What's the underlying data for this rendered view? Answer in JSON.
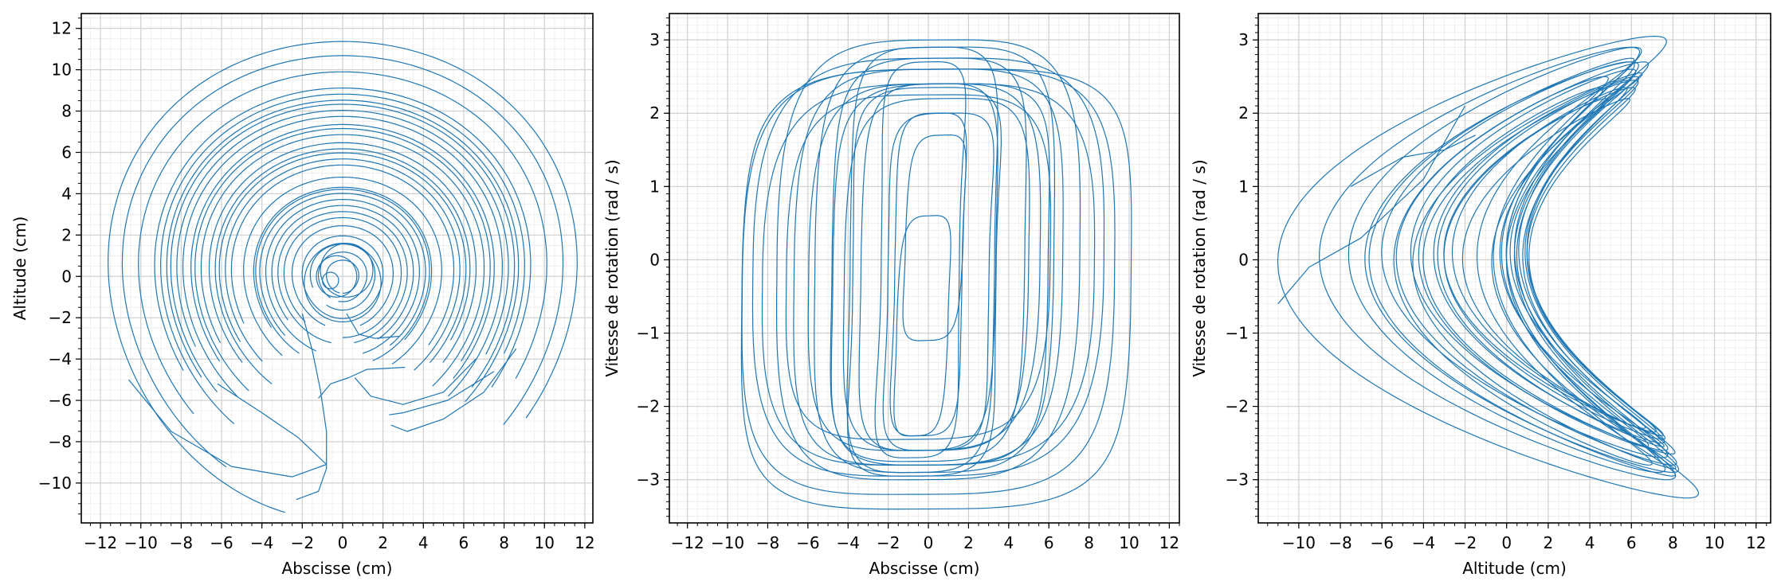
{
  "colors": {
    "line": "#1f77b4",
    "major_grid": "#d0d0d0",
    "minor_grid": "#ececec",
    "axes": "#000000"
  },
  "chart_data": [
    {
      "type": "line",
      "title": "",
      "xlabel": "Abscisse (cm)",
      "ylabel": "Altitude (cm)",
      "xlim": [
        -12.95,
        12.4
      ],
      "ylim": [
        -11.93,
        12.72
      ],
      "xticks": [
        -12,
        -10,
        -8,
        -6,
        -4,
        -2,
        0,
        2,
        4,
        6,
        8,
        10,
        12
      ],
      "yticks": [
        -10,
        -8,
        -6,
        -4,
        -2,
        0,
        2,
        4,
        6,
        8,
        10,
        12
      ],
      "xminor": 0.5,
      "yminor": 0.5,
      "grid": true,
      "arcs_r_startdeg_enddeg": [
        [
          11.6,
          256,
          -37
        ],
        [
          10.9,
          238,
          -42
        ],
        [
          10.1,
          222,
          -30
        ],
        [
          9.3,
          210,
          -36
        ],
        [
          9.0,
          233,
          -25
        ],
        [
          8.7,
          215,
          -45
        ],
        [
          8.5,
          222,
          -40
        ],
        [
          8.2,
          205,
          -28
        ],
        [
          7.9,
          228,
          -48
        ],
        [
          7.5,
          214,
          -42
        ],
        [
          7.3,
          230,
          -35
        ],
        [
          7.0,
          208,
          -50
        ],
        [
          6.6,
          220,
          -40
        ],
        [
          6.3,
          236,
          -30
        ],
        [
          6.1,
          212,
          -44
        ],
        [
          5.8,
          226,
          -52
        ],
        [
          5.5,
          205,
          -38
        ],
        [
          4.9,
          232,
          -60
        ],
        [
          4.4,
          215,
          -45
        ],
        [
          4.3,
          240,
          -70
        ],
        [
          4.1,
          225,
          -55
        ],
        [
          3.8,
          250,
          -75
        ],
        [
          3.5,
          218,
          -60
        ],
        [
          3.2,
          260,
          -80
        ],
        [
          2.9,
          230,
          -90
        ],
        [
          2.5,
          250,
          -70
        ],
        [
          2.0,
          270,
          -100
        ],
        [
          1.6,
          200,
          -120
        ],
        [
          1.2,
          240,
          -100
        ],
        [
          0.8,
          260,
          -90
        ]
      ],
      "paths": [
        [
          [
            -2.3,
            -10.8
          ],
          [
            -1.2,
            -10.4
          ],
          [
            -0.8,
            -9.3
          ],
          [
            -0.8,
            -7.5
          ],
          [
            -1.1,
            -5.5
          ],
          [
            -1.5,
            -3.6
          ],
          [
            -2.0,
            -1.8
          ]
        ],
        [
          [
            -10.6,
            -5.0
          ],
          [
            -8.5,
            -7.5
          ],
          [
            -5.5,
            -9.2
          ],
          [
            -2.5,
            -9.7
          ],
          [
            -0.8,
            -9.1
          ],
          [
            -2.2,
            -7.8
          ],
          [
            -4.0,
            -6.6
          ],
          [
            -6.2,
            -5.2
          ]
        ],
        [
          [
            2.4,
            -7.2
          ],
          [
            3.2,
            -7.5
          ],
          [
            5.0,
            -6.9
          ],
          [
            7.0,
            -5.6
          ],
          [
            8.6,
            -3.5
          ]
        ],
        [
          [
            2.3,
            -6.7
          ],
          [
            3.0,
            -6.6
          ],
          [
            5.2,
            -6.0
          ],
          [
            7.5,
            -4.6
          ]
        ],
        [
          [
            0.6,
            -4.9
          ],
          [
            1.4,
            -5.8
          ],
          [
            3.0,
            -6.2
          ],
          [
            5.0,
            -5.6
          ],
          [
            6.6,
            -4.0
          ]
        ],
        [
          [
            -1.2,
            -5.9
          ],
          [
            -0.6,
            -5.2
          ],
          [
            0.3,
            -4.9
          ],
          [
            1.2,
            -4.5
          ],
          [
            3.1,
            -4.4
          ]
        ],
        [
          [
            0.2,
            -1.8
          ],
          [
            0.8,
            -2.8
          ],
          [
            1.6,
            -3.0
          ],
          [
            2.8,
            -2.9
          ]
        ]
      ],
      "small_loops_cx_cy_r": [
        [
          -0.6,
          -0.2,
          0.4
        ],
        [
          -0.3,
          0.0,
          1.0
        ],
        [
          0.2,
          0.3,
          1.3
        ],
        [
          0.0,
          -0.3,
          1.9
        ]
      ]
    },
    {
      "type": "line",
      "title": "",
      "xlabel": "Abscisse (cm)",
      "ylabel": "Vitesse de rotation (rad / s)",
      "xlim": [
        -12.9,
        12.5
      ],
      "ylim": [
        -3.59,
        3.36
      ],
      "xticks": [
        -12,
        -10,
        -8,
        -6,
        -4,
        -2,
        0,
        2,
        4,
        6,
        8,
        10,
        12
      ],
      "yticks": [
        -3,
        -2,
        -1,
        0,
        1,
        2,
        3
      ],
      "xminor": 0.5,
      "yminor": 0.1,
      "grid": true,
      "loops_cx_a_cy_b_waist": [
        [
          0,
          9.2,
          -0.1,
          2.85,
          0.05
        ],
        [
          0,
          8.2,
          0.0,
          3.0,
          0.08
        ],
        [
          0,
          7.6,
          -0.1,
          2.7,
          0.12
        ],
        [
          0.3,
          7.0,
          0.0,
          2.9,
          0.15
        ],
        [
          -0.2,
          6.4,
          -0.1,
          2.5,
          0.1
        ],
        [
          0,
          6.0,
          0.0,
          2.75,
          0.2
        ],
        [
          0.4,
          5.4,
          -0.2,
          2.4,
          0.15
        ],
        [
          -0.3,
          4.8,
          0.0,
          2.9,
          0.25
        ],
        [
          0,
          4.2,
          -0.1,
          2.5,
          0.2
        ],
        [
          0.5,
          3.6,
          -0.3,
          2.3,
          0.3
        ],
        [
          -0.4,
          3.0,
          0.0,
          2.7,
          0.35
        ],
        [
          0,
          2.4,
          -0.2,
          2.2,
          0.3
        ],
        [
          0.3,
          1.8,
          0.3,
          1.4,
          0.2
        ],
        [
          -0.3,
          1.6,
          -0.9,
          1.5,
          0.2
        ],
        [
          0,
          10.3,
          -0.3,
          2.9,
          0.1
        ],
        [
          0.4,
          11.4,
          -0.4,
          3.0,
          0.15
        ],
        [
          0,
          8.7,
          -0.2,
          2.6,
          0.05
        ],
        [
          -0.5,
          7.3,
          -0.1,
          2.35,
          0.1
        ],
        [
          0.6,
          6.7,
          -0.2,
          2.6,
          0.2
        ],
        [
          -0.2,
          5.1,
          -0.3,
          2.65,
          0.3
        ]
      ]
    },
    {
      "type": "line",
      "title": "",
      "xlabel": "Altitude (cm)",
      "ylabel": "Vitesse de rotation (rad / s)",
      "xlim": [
        -11.95,
        12.7
      ],
      "ylim": [
        -3.59,
        3.36
      ],
      "xticks": [
        -10,
        -8,
        -6,
        -4,
        -2,
        0,
        2,
        4,
        6,
        8,
        10,
        12
      ],
      "yticks": [
        -3,
        -2,
        -1,
        0,
        1,
        2,
        3
      ],
      "xminor": 0.5,
      "yminor": 0.1,
      "grid": true,
      "crescents_xc_a_b_k_skew_cy": [
        [
          -5.5,
          5.5,
          3.15,
          1.35,
          -0.25,
          -0.1
        ],
        [
          -4.5,
          4.5,
          2.95,
          1.3,
          -0.3,
          -0.05
        ],
        [
          -3.8,
          3.8,
          2.9,
          1.25,
          -0.2,
          0.0
        ],
        [
          -3.2,
          3.6,
          2.8,
          1.3,
          -0.35,
          -0.1
        ],
        [
          -2.8,
          3.2,
          2.7,
          1.3,
          -0.3,
          0.0
        ],
        [
          -2.4,
          2.9,
          2.75,
          1.28,
          -0.25,
          -0.05
        ],
        [
          -2.0,
          2.6,
          2.6,
          1.3,
          -0.3,
          0.0
        ],
        [
          -1.6,
          2.4,
          2.55,
          1.33,
          -0.35,
          -0.1
        ],
        [
          -1.3,
          2.2,
          2.5,
          1.3,
          -0.25,
          0.0
        ],
        [
          -1.0,
          2.0,
          2.4,
          1.35,
          -0.3,
          -0.05
        ],
        [
          -0.8,
          1.8,
          2.35,
          1.3,
          -0.3,
          0.0
        ],
        [
          -0.5,
          1.6,
          2.3,
          1.35,
          -0.35,
          -0.1
        ],
        [
          -3.0,
          2.4,
          2.65,
          1.25,
          -0.4,
          -0.15
        ],
        [
          -2.2,
          2.0,
          2.45,
          1.3,
          -0.45,
          -0.1
        ],
        [
          -1.4,
          1.6,
          2.25,
          1.4,
          -0.4,
          -0.05
        ],
        [
          -4.0,
          2.6,
          2.85,
          1.35,
          -0.35,
          -0.1
        ],
        [
          -2.6,
          1.9,
          2.7,
          1.35,
          -0.3,
          -0.15
        ],
        [
          -1.8,
          1.5,
          2.5,
          1.35,
          -0.35,
          -0.05
        ]
      ],
      "paths": [
        [
          [
            -7.5,
            1.0
          ],
          [
            -5.0,
            1.4
          ],
          [
            -3.0,
            1.5
          ],
          [
            -1.5,
            1.7
          ]
        ],
        [
          [
            -11.0,
            -0.6
          ],
          [
            -9.5,
            -0.1
          ],
          [
            -7.0,
            0.3
          ],
          [
            -4.0,
            1.1
          ],
          [
            -2.0,
            2.1
          ]
        ]
      ]
    }
  ]
}
